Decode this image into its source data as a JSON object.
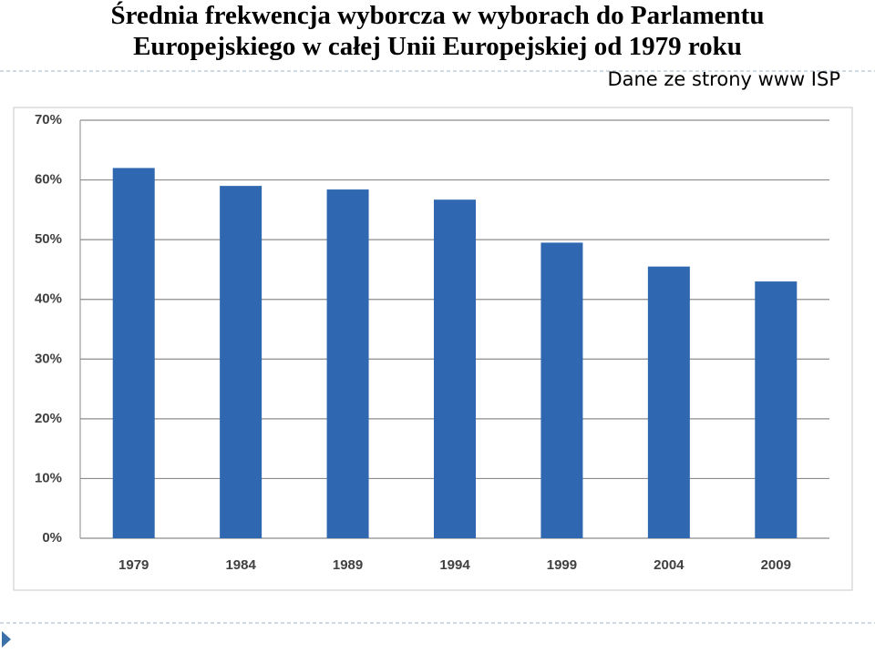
{
  "chart_data": {
    "type": "bar",
    "title": "Średnia frekwencja wyborcza w wyborach do Parlamentu Europejskiego w całej Unii Europejskiej od 1979 roku",
    "subtitle": "Dane ze strony www ISP",
    "categories": [
      "1979",
      "1984",
      "1989",
      "1994",
      "1999",
      "2004",
      "2009"
    ],
    "values": [
      62,
      59,
      58.4,
      56.7,
      49.5,
      45.5,
      43
    ],
    "color": "#2f68b1",
    "ylim": [
      0,
      70
    ],
    "yticks": [
      {
        "value": 0,
        "label": "0%"
      },
      {
        "value": 10,
        "label": "10%"
      },
      {
        "value": 20,
        "label": "20%"
      },
      {
        "value": 30,
        "label": "30%"
      },
      {
        "value": 40,
        "label": "40%"
      },
      {
        "value": 50,
        "label": "50%"
      },
      {
        "value": 60,
        "label": "60%"
      },
      {
        "value": 70,
        "label": "70%"
      }
    ],
    "grid": true
  }
}
